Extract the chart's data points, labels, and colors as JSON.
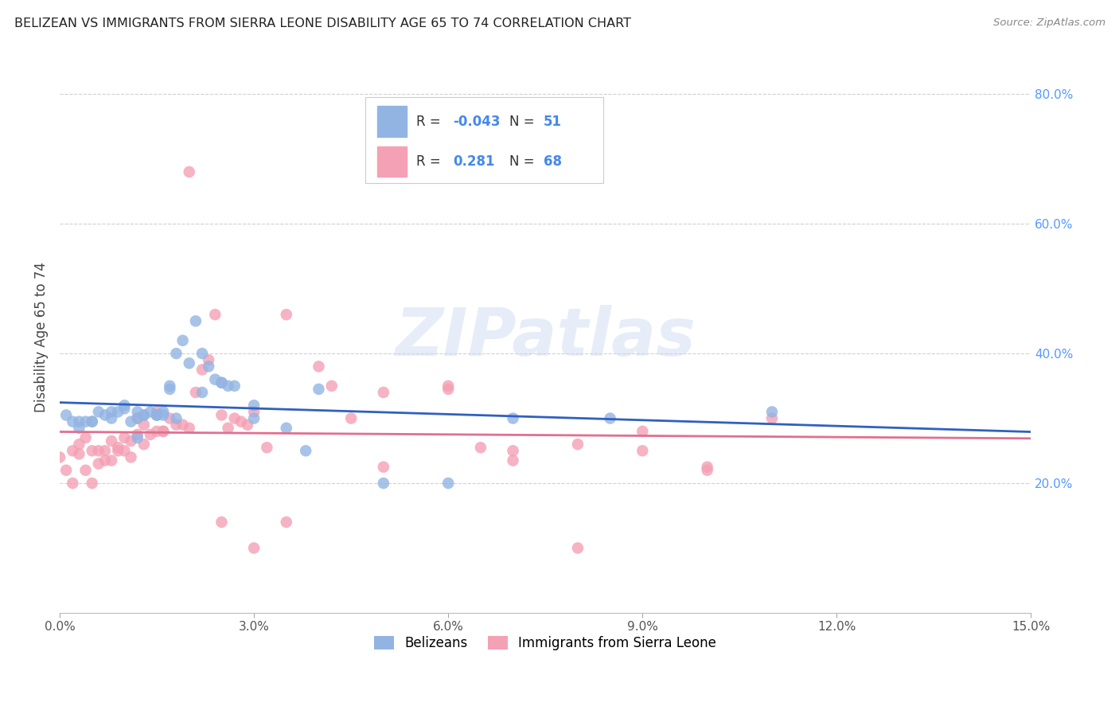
{
  "title": "BELIZEAN VS IMMIGRANTS FROM SIERRA LEONE DISABILITY AGE 65 TO 74 CORRELATION CHART",
  "source": "Source: ZipAtlas.com",
  "ylabel": "Disability Age 65 to 74",
  "xlim": [
    0.0,
    0.15
  ],
  "ylim": [
    0.0,
    0.85
  ],
  "xticks": [
    0.0,
    0.03,
    0.06,
    0.09,
    0.12,
    0.15
  ],
  "xtick_labels": [
    "0.0%",
    "3.0%",
    "6.0%",
    "9.0%",
    "12.0%",
    "15.0%"
  ],
  "ytick_positions": [
    0.2,
    0.4,
    0.6,
    0.8
  ],
  "right_ytick_labels": [
    "20.0%",
    "40.0%",
    "60.0%",
    "80.0%"
  ],
  "belizean_color": "#92b4e3",
  "sierra_leone_color": "#f4a0b5",
  "belizean_line_color": "#3060c0",
  "sierra_leone_line_color": "#e07090",
  "watermark": "ZIPatlas",
  "bel_x": [
    0.001,
    0.002,
    0.003,
    0.004,
    0.005,
    0.006,
    0.007,
    0.008,
    0.009,
    0.01,
    0.01,
    0.011,
    0.012,
    0.012,
    0.013,
    0.013,
    0.014,
    0.015,
    0.015,
    0.016,
    0.016,
    0.017,
    0.017,
    0.018,
    0.019,
    0.02,
    0.021,
    0.022,
    0.023,
    0.024,
    0.025,
    0.026,
    0.027,
    0.03,
    0.035,
    0.04,
    0.05,
    0.06,
    0.07,
    0.085,
    0.003,
    0.005,
    0.008,
    0.012,
    0.015,
    0.018,
    0.022,
    0.025,
    0.03,
    0.038,
    0.11
  ],
  "bel_y": [
    0.305,
    0.295,
    0.285,
    0.295,
    0.295,
    0.31,
    0.305,
    0.31,
    0.31,
    0.32,
    0.315,
    0.295,
    0.3,
    0.31,
    0.305,
    0.305,
    0.31,
    0.305,
    0.305,
    0.31,
    0.305,
    0.35,
    0.345,
    0.4,
    0.42,
    0.385,
    0.45,
    0.4,
    0.38,
    0.36,
    0.355,
    0.35,
    0.35,
    0.32,
    0.285,
    0.345,
    0.2,
    0.2,
    0.3,
    0.3,
    0.295,
    0.295,
    0.3,
    0.27,
    0.305,
    0.3,
    0.34,
    0.355,
    0.3,
    0.25,
    0.31
  ],
  "sl_x": [
    0.0,
    0.001,
    0.002,
    0.002,
    0.003,
    0.003,
    0.004,
    0.004,
    0.005,
    0.005,
    0.006,
    0.006,
    0.007,
    0.007,
    0.008,
    0.008,
    0.009,
    0.009,
    0.01,
    0.01,
    0.011,
    0.011,
    0.012,
    0.012,
    0.013,
    0.013,
    0.014,
    0.015,
    0.015,
    0.016,
    0.016,
    0.017,
    0.018,
    0.019,
    0.02,
    0.021,
    0.022,
    0.023,
    0.024,
    0.025,
    0.026,
    0.027,
    0.028,
    0.029,
    0.03,
    0.032,
    0.035,
    0.04,
    0.045,
    0.05,
    0.06,
    0.065,
    0.07,
    0.08,
    0.09,
    0.1,
    0.025,
    0.03,
    0.035,
    0.042,
    0.05,
    0.06,
    0.07,
    0.08,
    0.09,
    0.1,
    0.11,
    0.02
  ],
  "sl_y": [
    0.24,
    0.22,
    0.2,
    0.25,
    0.245,
    0.26,
    0.22,
    0.27,
    0.2,
    0.25,
    0.23,
    0.25,
    0.235,
    0.25,
    0.235,
    0.265,
    0.25,
    0.255,
    0.27,
    0.25,
    0.24,
    0.265,
    0.275,
    0.3,
    0.26,
    0.29,
    0.275,
    0.28,
    0.31,
    0.28,
    0.28,
    0.3,
    0.29,
    0.29,
    0.285,
    0.34,
    0.375,
    0.39,
    0.46,
    0.305,
    0.285,
    0.3,
    0.295,
    0.29,
    0.31,
    0.255,
    0.46,
    0.38,
    0.3,
    0.34,
    0.345,
    0.255,
    0.25,
    0.26,
    0.25,
    0.225,
    0.14,
    0.1,
    0.14,
    0.35,
    0.225,
    0.35,
    0.235,
    0.1,
    0.28,
    0.22,
    0.3,
    0.68
  ]
}
